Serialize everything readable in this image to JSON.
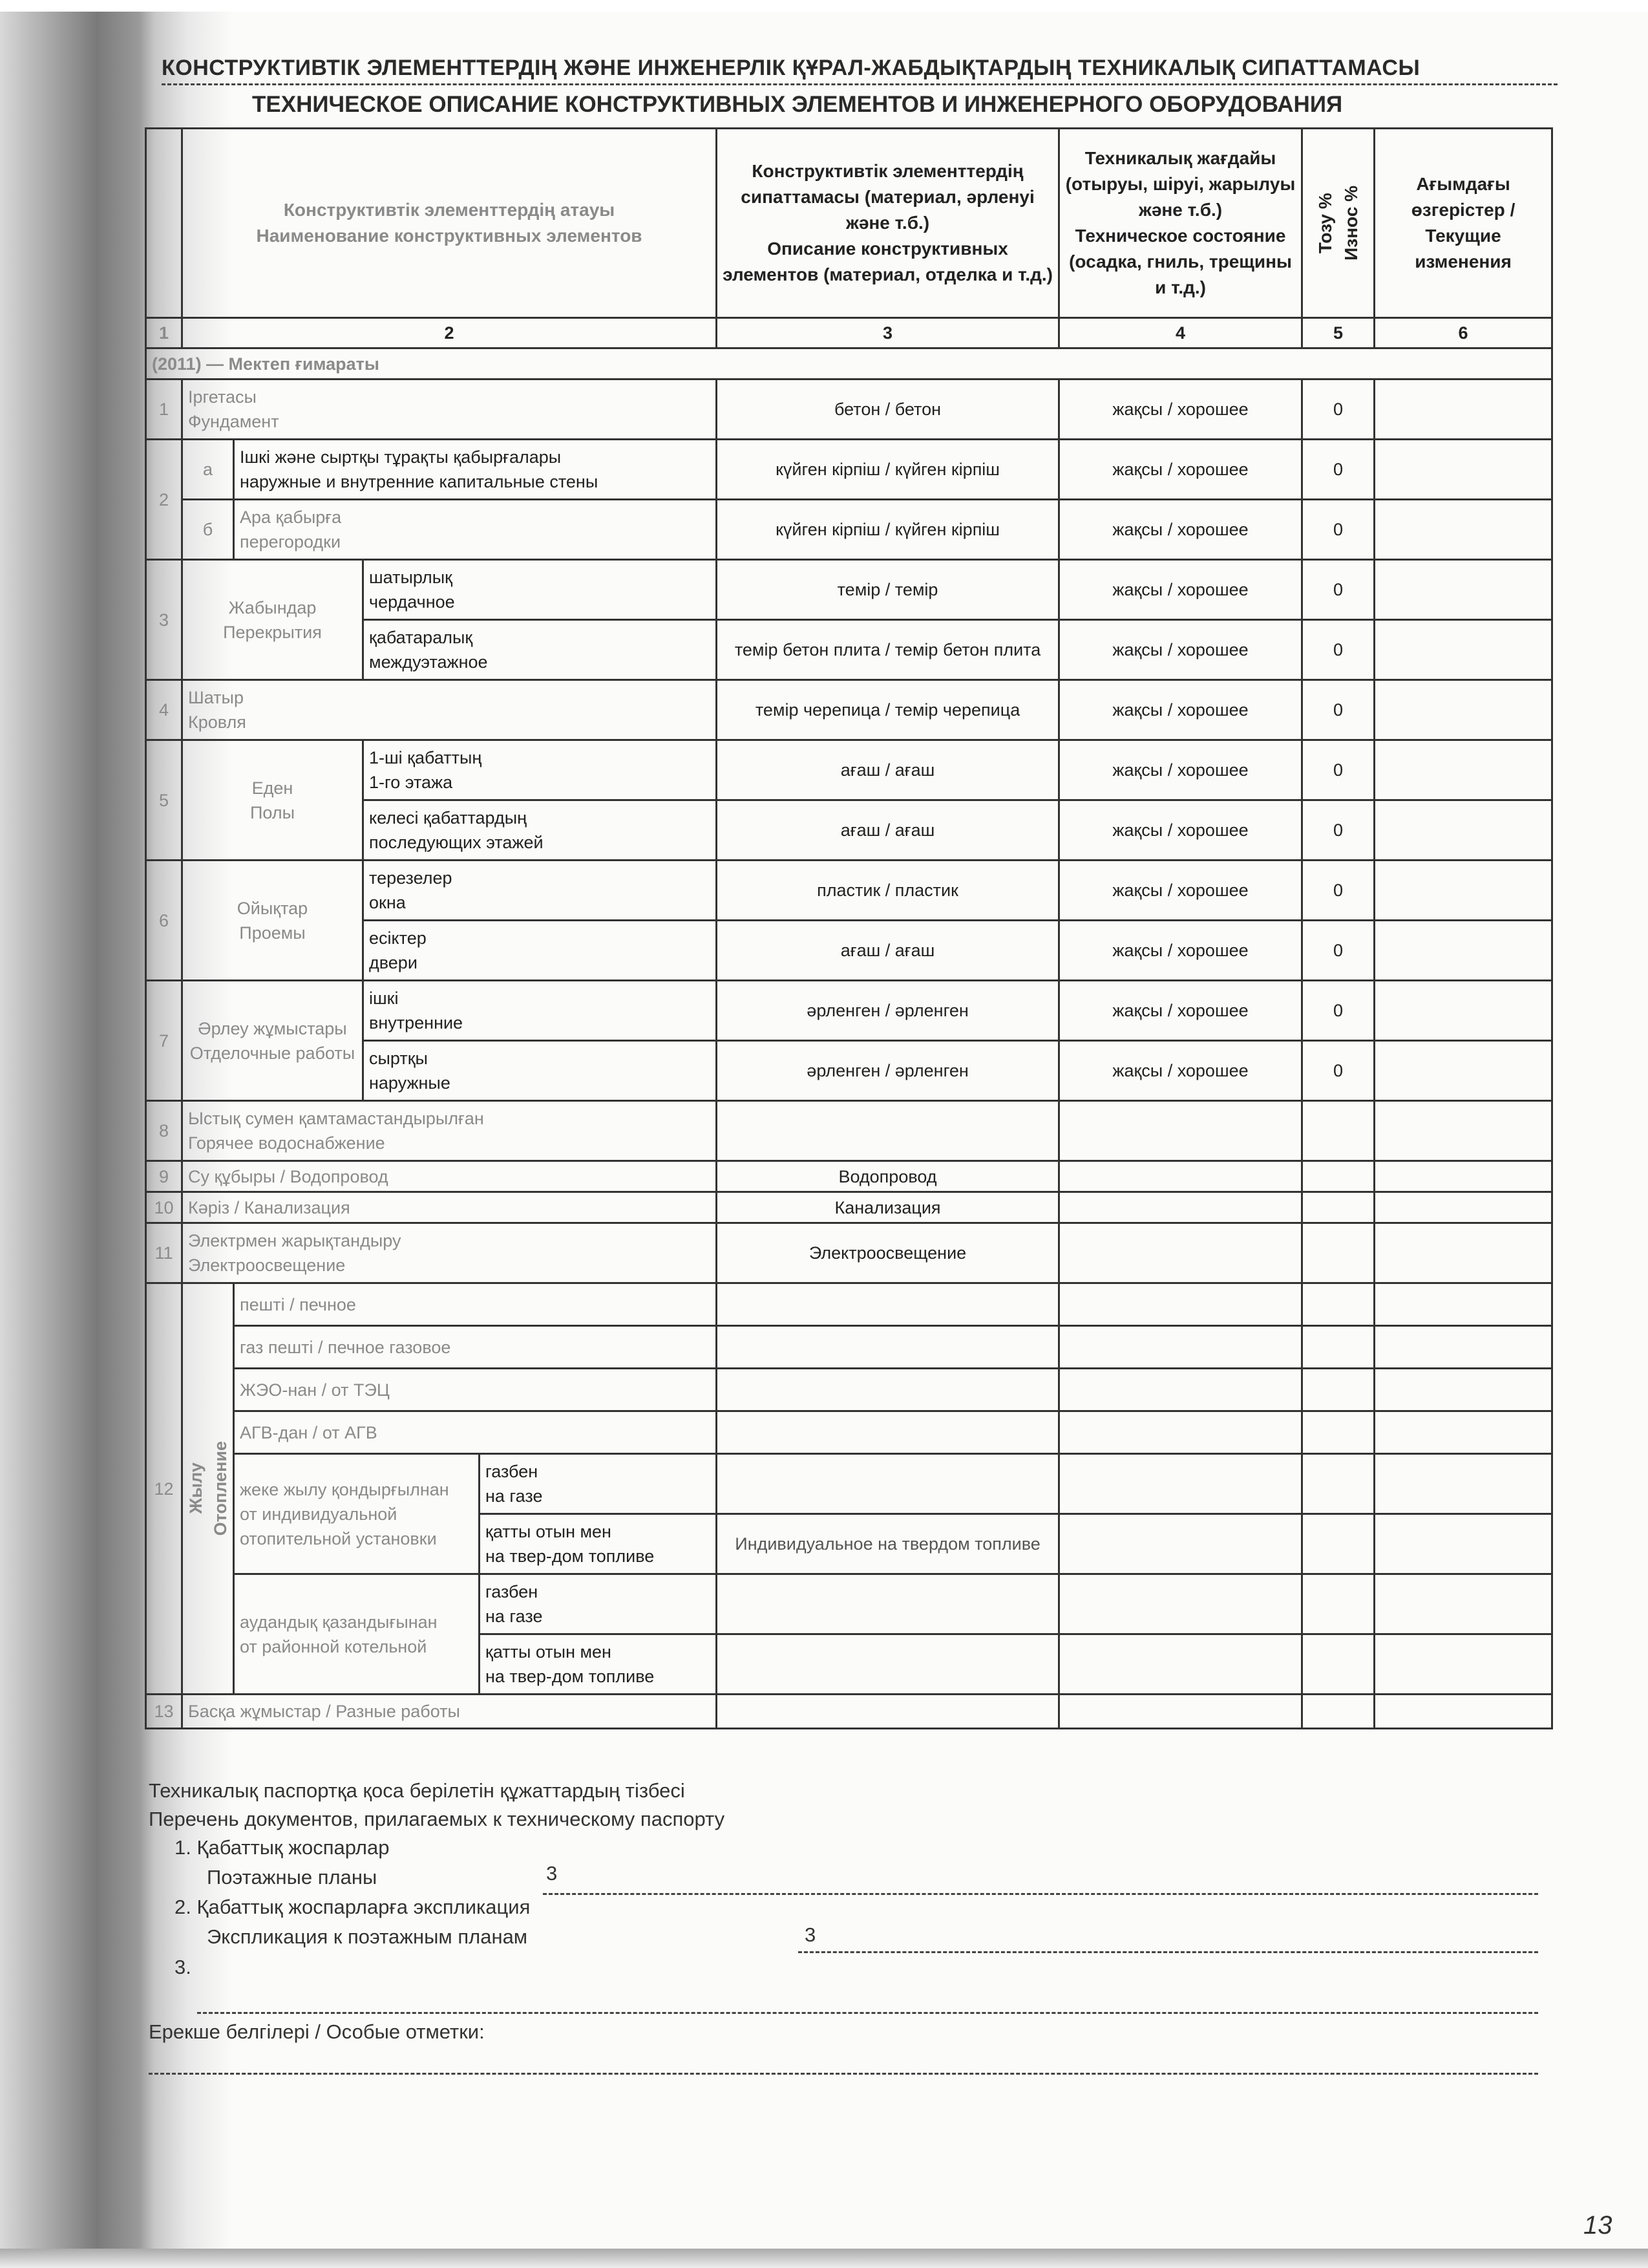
{
  "title_kz": "КОНСТРУКТИВТІК ЭЛЕМЕНТТЕРДІҢ ЖӘНЕ ИНЖЕНЕРЛІК ҚҰРАЛ-ЖАБДЫҚТАРДЫҢ ТЕХНИКАЛЫҚ СИПАТТАМАСЫ",
  "title_ru": "ТЕХНИЧЕСКОЕ ОПИСАНИЕ КОНСТРУКТИВНЫХ ЭЛЕМЕНТОВ И ИНЖЕНЕРНОГО ОБОРУДОВАНИЯ",
  "header": {
    "name": "Конструктивтік элементтердің атауы\nНаименование конструктивных элементов",
    "description": "Конструктивтік элементтердің сипаттамасы (материал, әрленуі және т.б.)\nОписание конструктивных элементов (материал, отделка и т.д.)",
    "condition": "Техникалық жағдайы (отыруы, шіруі, жарылуы және т.б.)\nТехническое состояние (осадка, гниль, трещины и т.д.)",
    "wear": "Тозу %\nИзнос %",
    "changes": "Ағымдағы өзгерістер / Текущие изменения",
    "col_numbers": [
      "1",
      "2",
      "3",
      "4",
      "5",
      "6"
    ]
  },
  "section": "(2011) — Мектеп ғимараты",
  "rows": {
    "foundation": {
      "num": "1",
      "label": "Іргетасы\nФундамент",
      "desc": "бетон / бетон",
      "cond": "жақсы / хорошее",
      "wear": "0"
    },
    "walls_group": "2",
    "walls": {
      "sub": "а",
      "label": "Ішкі және сыртқы тұрақты қабырғалары\nнаружные и внутренние капитальные стены",
      "desc": "күйген кірпіш / күйген кірпіш",
      "cond": "жақсы / хорошее",
      "wear": "0"
    },
    "partitions": {
      "sub": "б",
      "label": "Ара қабырға\nперегородки",
      "desc": "күйген кірпіш / күйген кірпіш",
      "cond": "жақсы / хорошее",
      "wear": "0"
    },
    "slabs": {
      "num": "3",
      "group": "Жабындар\nПерекрытия",
      "attic": {
        "label": "шатырлық\nчердачное",
        "desc": "темір / темір",
        "cond": "жақсы / хорошее",
        "wear": "0"
      },
      "interfloor": {
        "label": "қабатаралық\nмеждуэтажное",
        "desc": "темір бетон плита / темір бетон плита",
        "cond": "жақсы / хорошее",
        "wear": "0"
      }
    },
    "roof": {
      "num": "4",
      "label": "Шатыр\nКровля",
      "desc": "темір черепица / темір черепица",
      "cond": "жақсы / хорошее",
      "wear": "0"
    },
    "floors": {
      "num": "5",
      "group": "Еден\nПолы",
      "first": {
        "label": "1-ші қабаттың\n1-го этажа",
        "desc": "ағаш / ағаш",
        "cond": "жақсы / хорошее",
        "wear": "0"
      },
      "next": {
        "label": "келесі қабаттардың\nпоследующих этажей",
        "desc": "ағаш / ағаш",
        "cond": "жақсы / хорошее",
        "wear": "0"
      }
    },
    "openings": {
      "num": "6",
      "group": "Ойықтар\nПроемы",
      "windows": {
        "label": "терезелер\nокна",
        "desc": "пластик / пластик",
        "cond": "жақсы / хорошее",
        "wear": "0"
      },
      "doors": {
        "label": "есіктер\nдвери",
        "desc": "ағаш / ағаш",
        "cond": "жақсы / хорошее",
        "wear": "0"
      }
    },
    "finishing": {
      "num": "7",
      "group": "Әрлеу жұмыстары\nОтделочные работы",
      "interior": {
        "label": "ішкі\nвнутренние",
        "desc": "әрленген / әрленген",
        "cond": "жақсы / хорошее",
        "wear": "0"
      },
      "exterior": {
        "label": "сыртқы\nнаружные",
        "desc": "әрленген / әрленген",
        "cond": "жақсы / хорошее",
        "wear": "0"
      }
    },
    "hot_water": {
      "num": "8",
      "label": "Ыстық сумен қамтамастандырылған\nГорячее водоснабжение"
    },
    "water": {
      "num": "9",
      "label": "Су құбыры / Водопровод",
      "desc": "Водопровод"
    },
    "sewer": {
      "num": "10",
      "label": "Кәріз / Канализация",
      "desc": "Канализация"
    },
    "electric": {
      "num": "11",
      "label": "Электрмен жарықтандыру\nЭлектроосвещение",
      "desc": "Электроосвещение"
    },
    "heating": {
      "num": "12",
      "group": "Жылу\nОтопление",
      "stove": "пешті / печное",
      "gas_stove": "газ пешті / печное газовое",
      "chp": "ЖЭО-нан / от ТЭЦ",
      "agv": "АГВ-дан / от АГВ",
      "individual": "жеке жылу қондырғылнан\nот индивидуальной отопительной установки",
      "district": "аудандық қазандығынан\nот районной котельной",
      "gas": "газбен\nна газе",
      "solid": "қатты отын мен\nна твер-дом топливе",
      "individual_solid_desc": "Индивидуальное на твердом топливе"
    },
    "misc": {
      "num": "13",
      "label": "Басқа жұмыстар / Разные работы"
    }
  },
  "footer": {
    "list_kz": "Техникалық паспортқа қоса берілетін құжаттардың тізбесі",
    "list_ru": "Перечень документов, прилагаемых к техническому паспорту",
    "item1_kz": "1. Қабаттық жоспарлар",
    "item1_ru": "Поэтажные планы",
    "item1_value": "3",
    "item2_kz": "2. Қабаттық жоспарларға экспликация",
    "item2_ru": "Экспликация к поэтажным планам",
    "item2_value": "3",
    "item3": "3.",
    "notes": "Ерекше белгілері / Особые отметки:"
  },
  "page_number": "13"
}
